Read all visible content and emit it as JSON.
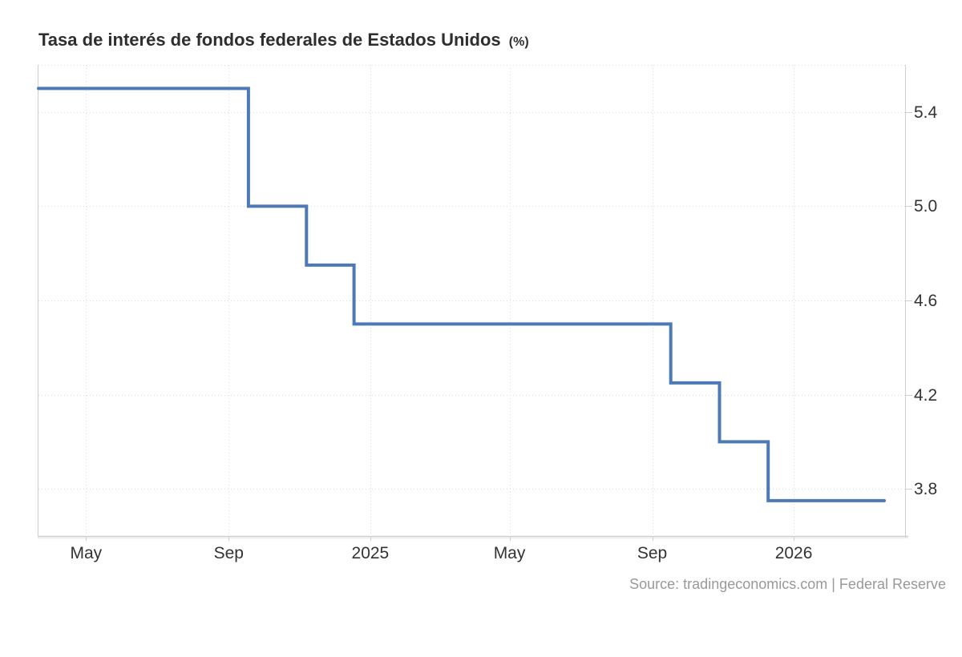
{
  "title": {
    "text": "Tasa de interés de fondos federales de Estados Unidos",
    "unit": "(%)"
  },
  "source": {
    "text": "Source: tradingeconomics.com | Federal Reserve"
  },
  "chart_data": {
    "type": "line",
    "subtype": "step-after",
    "title": "Tasa de interés de fondos federales de Estados Unidos (%)",
    "xlabel": "",
    "ylabel": "",
    "unit": "%",
    "legend": "none",
    "grid": "dotted",
    "x_range": [
      "2024-03-21",
      "2026-04-07"
    ],
    "y_range": [
      3.6,
      5.6
    ],
    "y_ticks": [
      {
        "value": 5.4,
        "label": "5.4"
      },
      {
        "value": 5.0,
        "label": "5.0"
      },
      {
        "value": 4.6,
        "label": "4.6"
      },
      {
        "value": 4.2,
        "label": "4.2"
      },
      {
        "value": 3.8,
        "label": "3.8"
      }
    ],
    "x_ticks": [
      {
        "date": "2024-05-01",
        "label": "May"
      },
      {
        "date": "2024-09-01",
        "label": "Sep"
      },
      {
        "date": "2025-01-01",
        "label": "2025"
      },
      {
        "date": "2025-05-01",
        "label": "May"
      },
      {
        "date": "2025-09-01",
        "label": "Sep"
      },
      {
        "date": "2026-01-01",
        "label": "2026"
      }
    ],
    "steps": [
      {
        "from": "2024-03-21",
        "to": "2024-09-18",
        "value": 5.5
      },
      {
        "from": "2024-09-18",
        "to": "2024-11-07",
        "value": 5.0
      },
      {
        "from": "2024-11-07",
        "to": "2024-12-18",
        "value": 4.75
      },
      {
        "from": "2024-12-18",
        "to": "2025-09-17",
        "value": 4.5
      },
      {
        "from": "2025-09-17",
        "to": "2025-10-29",
        "value": 4.25
      },
      {
        "from": "2025-10-29",
        "to": "2025-12-10",
        "value": 4.0
      },
      {
        "from": "2025-12-10",
        "to": "2026-03-20",
        "value": 3.75
      }
    ],
    "colors": {
      "line": "#4d7ab7",
      "grid": "#dcdcdc",
      "axis": "#cfcfcf",
      "axis_shadow": "#ededed",
      "tick_text": "#333333",
      "title_text": "#2e2e2e",
      "source_text": "#999999"
    }
  }
}
